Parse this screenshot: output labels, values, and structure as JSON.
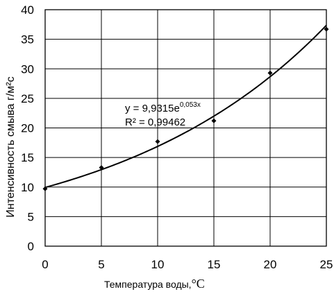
{
  "chart_data": {
    "type": "scatter",
    "ylabel": "Интенсивность смыва г/м²с",
    "xlabel_main": "Температура  воды,",
    "xlabel_unit": "°С",
    "xlim": [
      0,
      25
    ],
    "ylim": [
      0,
      40
    ],
    "x_ticks": [
      "0",
      "5",
      "10",
      "15",
      "20",
      "25"
    ],
    "y_ticks": [
      "0",
      "5",
      "10",
      "15",
      "20",
      "25",
      "30",
      "35",
      "40"
    ],
    "grid": true,
    "points": [
      {
        "x": 0,
        "y": 9.7
      },
      {
        "x": 5,
        "y": 13.3
      },
      {
        "x": 10,
        "y": 17.7
      },
      {
        "x": 15,
        "y": 21.2
      },
      {
        "x": 20,
        "y": 29.3
      },
      {
        "x": 25,
        "y": 36.7
      }
    ],
    "trendline": {
      "type": "exponential",
      "a": 9.9315,
      "b": 0.053,
      "equation_main": "y = 9,9315e",
      "equation_exp": "0,053x",
      "r2": "R² = 0,99462"
    }
  }
}
